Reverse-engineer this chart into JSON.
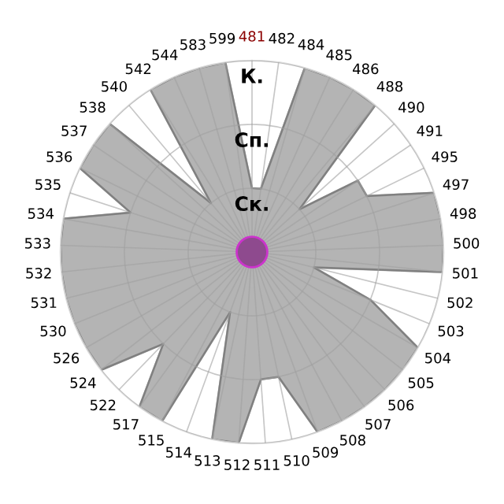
{
  "chart_data": {
    "type": "radar",
    "categories": [
      "481",
      "482",
      "484",
      "485",
      "486",
      "488",
      "490",
      "491",
      "495",
      "497",
      "498",
      "500",
      "501",
      "502",
      "503",
      "504",
      "505",
      "506",
      "507",
      "508",
      "509",
      "510",
      "511",
      "512",
      "513",
      "514",
      "515",
      "517",
      "522",
      "524",
      "526",
      "530",
      "531",
      "532",
      "533",
      "534",
      "535",
      "536",
      "537",
      "538",
      "540",
      "542",
      "544",
      "583",
      "599"
    ],
    "series": [
      {
        "color": "#b4b4b4",
        "values": [
          1,
          1,
          3,
          3,
          3,
          3,
          1,
          2,
          2,
          3,
          3,
          3,
          3,
          1,
          2,
          3,
          3,
          3,
          3,
          3,
          3,
          2,
          2,
          3,
          3,
          1,
          3,
          3,
          2,
          3,
          3,
          3,
          3,
          3,
          3,
          3,
          2,
          3,
          3,
          3,
          1,
          3,
          3,
          3,
          3
        ]
      }
    ],
    "ylim": [
      0,
      3
    ],
    "yticks": [
      {
        "value": 1,
        "label": "Ск."
      },
      {
        "value": 2,
        "label": "Сп."
      },
      {
        "value": 3,
        "label": "К."
      }
    ],
    "grid": true,
    "legend": false
  }
}
